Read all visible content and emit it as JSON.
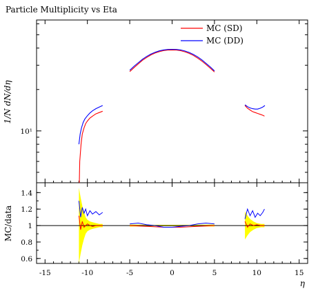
{
  "chart_data": [
    {
      "type": "line",
      "title": "Particle Multiplicity vs Eta",
      "ylabel": "1/N dN/dη",
      "yscale": "log",
      "yticks": [
        {
          "value": 10,
          "label": "10¹"
        }
      ],
      "xlim": [
        -16,
        16
      ],
      "legend_position": "top-right",
      "series": [
        {
          "name": "MC (SD)",
          "color": "#ff0000",
          "segments": [
            [
              [
                -11.0,
                3.0
              ],
              [
                -10.9,
                6.0
              ],
              [
                -10.75,
                8.0
              ],
              [
                -10.6,
                9.5
              ],
              [
                -10.4,
                10.5
              ],
              [
                -10.2,
                11.3
              ],
              [
                -10.0,
                11.8
              ],
              [
                -9.7,
                12.4
              ],
              [
                -9.4,
                12.8
              ],
              [
                -9.0,
                13.3
              ],
              [
                -8.6,
                13.6
              ],
              [
                -8.2,
                13.9
              ]
            ],
            [
              [
                -5.0,
                27.0
              ],
              [
                -4.5,
                28.8
              ],
              [
                -4.0,
                30.7
              ],
              [
                -3.5,
                32.6
              ],
              [
                -3.0,
                34.2
              ],
              [
                -2.5,
                35.7
              ],
              [
                -2.0,
                36.8
              ],
              [
                -1.5,
                37.7
              ],
              [
                -1.0,
                38.4
              ],
              [
                -0.5,
                38.7
              ],
              [
                0.0,
                38.8
              ],
              [
                0.5,
                38.7
              ],
              [
                1.0,
                38.3
              ],
              [
                1.5,
                37.6
              ],
              [
                2.0,
                36.6
              ],
              [
                2.5,
                35.4
              ],
              [
                3.0,
                33.9
              ],
              [
                3.5,
                32.2
              ],
              [
                4.0,
                30.4
              ],
              [
                4.5,
                28.6
              ],
              [
                5.0,
                26.8
              ]
            ],
            [
              [
                8.6,
                15.3
              ],
              [
                8.9,
                14.6
              ],
              [
                9.2,
                14.2
              ],
              [
                9.5,
                13.8
              ],
              [
                9.8,
                13.6
              ],
              [
                10.1,
                13.4
              ],
              [
                10.4,
                13.2
              ],
              [
                10.7,
                13.0
              ],
              [
                10.9,
                12.8
              ]
            ]
          ]
        },
        {
          "name": "MC (DD)",
          "color": "#0000ff",
          "segments": [
            [
              [
                -11.0,
                8.0
              ],
              [
                -10.85,
                9.5
              ],
              [
                -10.7,
                10.5
              ],
              [
                -10.5,
                11.5
              ],
              [
                -10.3,
                12.2
              ],
              [
                -10.0,
                12.9
              ],
              [
                -9.7,
                13.5
              ],
              [
                -9.4,
                14.0
              ],
              [
                -9.0,
                14.5
              ],
              [
                -8.6,
                14.9
              ],
              [
                -8.2,
                15.3
              ]
            ],
            [
              [
                -5.0,
                27.6
              ],
              [
                -4.5,
                29.5
              ],
              [
                -4.0,
                31.3
              ],
              [
                -3.5,
                33.2
              ],
              [
                -3.0,
                34.8
              ],
              [
                -2.5,
                36.2
              ],
              [
                -2.0,
                37.3
              ],
              [
                -1.5,
                38.2
              ],
              [
                -1.0,
                38.8
              ],
              [
                -0.5,
                39.1
              ],
              [
                0.0,
                39.2
              ],
              [
                0.5,
                39.1
              ],
              [
                1.0,
                38.8
              ],
              [
                1.5,
                38.1
              ],
              [
                2.0,
                37.2
              ],
              [
                2.5,
                36.0
              ],
              [
                3.0,
                34.6
              ],
              [
                3.5,
                32.9
              ],
              [
                4.0,
                31.0
              ],
              [
                4.5,
                29.2
              ],
              [
                5.0,
                27.3
              ]
            ],
            [
              [
                8.6,
                15.5
              ],
              [
                8.9,
                15.0
              ],
              [
                9.2,
                14.7
              ],
              [
                9.5,
                14.5
              ],
              [
                9.8,
                14.4
              ],
              [
                10.1,
                14.4
              ],
              [
                10.4,
                14.6
              ],
              [
                10.7,
                14.9
              ],
              [
                10.95,
                15.3
              ]
            ]
          ]
        }
      ]
    },
    {
      "type": "line",
      "ylabel": "MC/data",
      "xlabel": "η",
      "ylim": [
        0.54,
        1.52
      ],
      "xlim": [
        -16,
        16
      ],
      "xticks": [
        -15,
        -10,
        -5,
        0,
        5,
        10,
        15
      ],
      "xtick_labels": [
        "-15",
        "-10",
        "-5",
        "0",
        "5",
        "10",
        "15"
      ],
      "yticks": [
        0.6,
        0.8,
        1,
        1.2,
        1.4
      ],
      "ytick_labels": [
        "0.6",
        "0.8",
        "1",
        "1.2",
        "1.4"
      ],
      "reference_line": 1,
      "uncertainty_band": {
        "color": "#ffff00",
        "regions": [
          {
            "x": [
              -11.0,
              -10.8,
              -10.6,
              -10.4,
              -10.2,
              -10.0,
              -9.7,
              -9.4,
              -9.0,
              -8.6,
              -8.2
            ],
            "half_width": [
              0.46,
              0.34,
              0.24,
              0.16,
              0.1,
              0.07,
              0.05,
              0.04,
              0.03,
              0.02,
              0.02
            ]
          },
          {
            "x": [
              -5.0,
              -3.0,
              -1.0,
              1.0,
              3.0,
              5.0
            ],
            "half_width": [
              0.012,
              0.01,
              0.008,
              0.008,
              0.01,
              0.012
            ]
          },
          {
            "x": [
              8.6,
              8.9,
              9.2,
              9.6,
              10.0,
              10.5,
              10.9
            ],
            "half_width": [
              0.17,
              0.12,
              0.08,
              0.05,
              0.03,
              0.02,
              0.02
            ]
          }
        ]
      },
      "series": [
        {
          "name": "MC (SD)",
          "color": "#ff0000",
          "segments": [
            [
              [
                -11.0,
                1.12
              ],
              [
                -10.8,
                0.95
              ],
              [
                -10.6,
                1.05
              ],
              [
                -10.4,
                0.98
              ],
              [
                -10.2,
                1.0
              ],
              [
                -10.0,
                1.02
              ],
              [
                -9.7,
                1.0
              ],
              [
                -9.4,
                0.99
              ],
              [
                -9.0,
                1.0
              ],
              [
                -8.6,
                1.0
              ],
              [
                -8.2,
                1.0
              ]
            ],
            [
              [
                -5.0,
                1.0
              ],
              [
                -3.0,
                0.99
              ],
              [
                -1.0,
                0.98
              ],
              [
                1.0,
                0.98
              ],
              [
                3.0,
                0.99
              ],
              [
                5.0,
                1.0
              ]
            ],
            [
              [
                8.6,
                1.05
              ],
              [
                8.9,
                0.98
              ],
              [
                9.2,
                1.02
              ],
              [
                9.6,
                1.0
              ],
              [
                10.0,
                1.01
              ],
              [
                10.5,
                1.0
              ],
              [
                10.9,
                1.0
              ]
            ]
          ]
        },
        {
          "name": "MC (DD)",
          "color": "#0000ff",
          "segments": [
            [
              [
                -11.0,
                1.3
              ],
              [
                -10.8,
                1.1
              ],
              [
                -10.6,
                1.22
              ],
              [
                -10.4,
                1.15
              ],
              [
                -10.2,
                1.2
              ],
              [
                -10.0,
                1.12
              ],
              [
                -9.7,
                1.18
              ],
              [
                -9.4,
                1.14
              ],
              [
                -9.0,
                1.17
              ],
              [
                -8.6,
                1.13
              ],
              [
                -8.2,
                1.16
              ]
            ],
            [
              [
                -5.0,
                1.02
              ],
              [
                -4.0,
                1.03
              ],
              [
                -3.0,
                1.01
              ],
              [
                -2.0,
                1.0
              ],
              [
                -1.0,
                0.98
              ],
              [
                0.0,
                0.98
              ],
              [
                1.0,
                0.99
              ],
              [
                2.0,
                1.0
              ],
              [
                3.0,
                1.02
              ],
              [
                4.0,
                1.03
              ],
              [
                5.0,
                1.02
              ]
            ],
            [
              [
                8.6,
                1.08
              ],
              [
                8.9,
                1.2
              ],
              [
                9.2,
                1.12
              ],
              [
                9.5,
                1.18
              ],
              [
                9.8,
                1.1
              ],
              [
                10.1,
                1.15
              ],
              [
                10.4,
                1.12
              ],
              [
                10.7,
                1.16
              ],
              [
                10.9,
                1.2
              ]
            ]
          ]
        }
      ]
    }
  ]
}
